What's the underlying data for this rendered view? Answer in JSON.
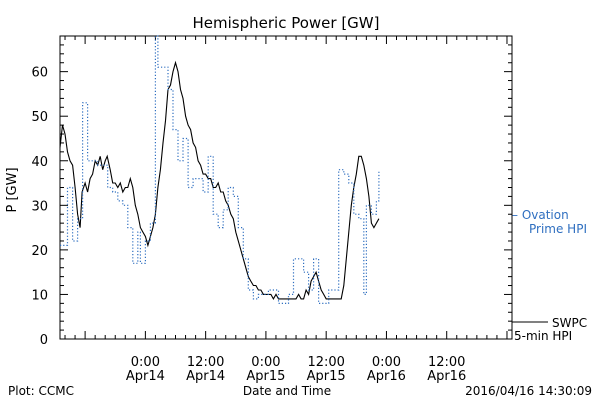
{
  "chart_data": {
    "type": "line",
    "title": "Hemispheric Power [GW]",
    "xlabel": "Date and Time",
    "ylabel": "P [GW]",
    "ylim": [
      0,
      68
    ],
    "xlim": [
      -17,
      73
    ],
    "grid": false,
    "yticks": [
      0,
      10,
      20,
      30,
      40,
      50,
      60
    ],
    "xticks": [
      {
        "x": 0,
        "time": "0:00",
        "date": "Apr14"
      },
      {
        "x": 12,
        "time": "12:00",
        "date": "Apr14"
      },
      {
        "x": 24,
        "time": "0:00",
        "date": "Apr15"
      },
      {
        "x": 36,
        "time": "12:00",
        "date": "Apr15"
      },
      {
        "x": 48,
        "time": "0:00",
        "date": "Apr16"
      },
      {
        "x": 60,
        "time": "12:00",
        "date": "Apr16"
      }
    ],
    "x_units_note": "hours relative to 2016-04-14 00:00",
    "series": [
      {
        "name": "SWPC 5-min HPI",
        "label_line1": "SWPC",
        "label_line2": "5-min HPI",
        "color": "#000000",
        "style": "solid",
        "points": [
          [
            -17,
            43
          ],
          [
            -16.5,
            48
          ],
          [
            -16,
            46
          ],
          [
            -15.5,
            42
          ],
          [
            -15,
            40
          ],
          [
            -14.5,
            39
          ],
          [
            -14,
            34
          ],
          [
            -13.5,
            28
          ],
          [
            -13,
            25
          ],
          [
            -12.6,
            33
          ],
          [
            -12,
            35
          ],
          [
            -11.5,
            33
          ],
          [
            -11,
            36
          ],
          [
            -10.5,
            37
          ],
          [
            -10,
            40
          ],
          [
            -9.5,
            39
          ],
          [
            -9,
            41
          ],
          [
            -8.5,
            38
          ],
          [
            -8,
            40
          ],
          [
            -7.6,
            41
          ],
          [
            -7,
            38
          ],
          [
            -6.5,
            35
          ],
          [
            -6,
            35
          ],
          [
            -5.5,
            34
          ],
          [
            -5,
            35
          ],
          [
            -4.5,
            33
          ],
          [
            -4,
            34
          ],
          [
            -3.5,
            34
          ],
          [
            -3,
            36
          ],
          [
            -2.5,
            34
          ],
          [
            -2,
            30
          ],
          [
            -1.5,
            28
          ],
          [
            -1,
            25
          ],
          [
            -0.5,
            24
          ],
          [
            0,
            23
          ],
          [
            0.5,
            21
          ],
          [
            1,
            23
          ],
          [
            1.5,
            25
          ],
          [
            2,
            28
          ],
          [
            2.5,
            34
          ],
          [
            3,
            38
          ],
          [
            3.5,
            44
          ],
          [
            4,
            49
          ],
          [
            4.5,
            56
          ],
          [
            5,
            57
          ],
          [
            5.5,
            60
          ],
          [
            6,
            62
          ],
          [
            6.5,
            60
          ],
          [
            7,
            56
          ],
          [
            7.5,
            54
          ],
          [
            8,
            50
          ],
          [
            8.5,
            48
          ],
          [
            9,
            47
          ],
          [
            9.5,
            44
          ],
          [
            10,
            43
          ],
          [
            10.5,
            40
          ],
          [
            11,
            39
          ],
          [
            11.5,
            37
          ],
          [
            12,
            37
          ],
          [
            12.5,
            36
          ],
          [
            13,
            36
          ],
          [
            13.5,
            34
          ],
          [
            14,
            34
          ],
          [
            14.5,
            35
          ],
          [
            15,
            33
          ],
          [
            15.5,
            33
          ],
          [
            16,
            31
          ],
          [
            16.5,
            30
          ],
          [
            17,
            28
          ],
          [
            17.5,
            27
          ],
          [
            18,
            24
          ],
          [
            18.5,
            22
          ],
          [
            19,
            20
          ],
          [
            19.5,
            18
          ],
          [
            20,
            16
          ],
          [
            20.5,
            14
          ],
          [
            21,
            13
          ],
          [
            21.5,
            12
          ],
          [
            22,
            12
          ],
          [
            22.5,
            11
          ],
          [
            23,
            11
          ],
          [
            23.5,
            10
          ],
          [
            24,
            10
          ],
          [
            24.5,
            10
          ],
          [
            25,
            10
          ],
          [
            25.5,
            9
          ],
          [
            26,
            10
          ],
          [
            26.5,
            9
          ],
          [
            27,
            9
          ],
          [
            27.5,
            9
          ],
          [
            28,
            9
          ],
          [
            28.5,
            9
          ],
          [
            29,
            9
          ],
          [
            29.5,
            9
          ],
          [
            30,
            9
          ],
          [
            30.5,
            10
          ],
          [
            31,
            9
          ],
          [
            31.5,
            9
          ],
          [
            32,
            11
          ],
          [
            32.5,
            10
          ],
          [
            33,
            13
          ],
          [
            33.5,
            14
          ],
          [
            34,
            15
          ],
          [
            34.5,
            13
          ],
          [
            35,
            11
          ],
          [
            35.5,
            10
          ],
          [
            36,
            9
          ],
          [
            36.5,
            9
          ],
          [
            37,
            9
          ],
          [
            37.5,
            9
          ],
          [
            38,
            9
          ],
          [
            38.5,
            9
          ],
          [
            39,
            9
          ],
          [
            39.5,
            12
          ],
          [
            40,
            18
          ],
          [
            40.5,
            24
          ],
          [
            41,
            30
          ],
          [
            41.5,
            34
          ],
          [
            42,
            37
          ],
          [
            42.5,
            41
          ],
          [
            43,
            41
          ],
          [
            43.5,
            39
          ],
          [
            44,
            36
          ],
          [
            44.5,
            32
          ],
          [
            45,
            26
          ],
          [
            45.5,
            25
          ],
          [
            46,
            26
          ],
          [
            46.5,
            27
          ]
        ]
      },
      {
        "name": "Ovation Prime HPI",
        "label_line1": "Ovation",
        "label_line2": "Prime HPI",
        "color": "#2f6fc0",
        "style": "dotted",
        "points": [
          [
            -17,
            21
          ],
          [
            -15.5,
            21
          ],
          [
            -15.5,
            34
          ],
          [
            -14.5,
            34
          ],
          [
            -14.5,
            22
          ],
          [
            -13.5,
            22
          ],
          [
            -13.5,
            27
          ],
          [
            -12.5,
            27
          ],
          [
            -12.5,
            53
          ],
          [
            -11.5,
            53
          ],
          [
            -11.5,
            40
          ],
          [
            -9.5,
            40
          ],
          [
            -9.5,
            39
          ],
          [
            -7.5,
            39
          ],
          [
            -7.5,
            34
          ],
          [
            -6.5,
            34
          ],
          [
            -6.5,
            33
          ],
          [
            -5.5,
            33
          ],
          [
            -5.5,
            31
          ],
          [
            -4.5,
            31
          ],
          [
            -4.5,
            30
          ],
          [
            -3.5,
            30
          ],
          [
            -3.5,
            25
          ],
          [
            -2.5,
            25
          ],
          [
            -2.5,
            17
          ],
          [
            -1.5,
            17
          ],
          [
            -1.5,
            24
          ],
          [
            -1,
            24
          ],
          [
            -1,
            17
          ],
          [
            0,
            17
          ],
          [
            0,
            22
          ],
          [
            1,
            22
          ],
          [
            1,
            26
          ],
          [
            2,
            26
          ],
          [
            2,
            68
          ],
          [
            2.5,
            68
          ],
          [
            2.5,
            61
          ],
          [
            4.5,
            61
          ],
          [
            4.5,
            56
          ],
          [
            5.5,
            56
          ],
          [
            5.5,
            47
          ],
          [
            6.5,
            47
          ],
          [
            6.5,
            40
          ],
          [
            7.5,
            40
          ],
          [
            7.5,
            45
          ],
          [
            8.5,
            45
          ],
          [
            8.5,
            34
          ],
          [
            9.5,
            34
          ],
          [
            9.5,
            36
          ],
          [
            11.5,
            36
          ],
          [
            11.5,
            33
          ],
          [
            12.5,
            33
          ],
          [
            12.5,
            41
          ],
          [
            13.5,
            41
          ],
          [
            13.5,
            28
          ],
          [
            14.5,
            28
          ],
          [
            14.5,
            25
          ],
          [
            15.5,
            25
          ],
          [
            15.5,
            29
          ],
          [
            16.5,
            29
          ],
          [
            16.5,
            34
          ],
          [
            17.5,
            34
          ],
          [
            17.5,
            32
          ],
          [
            18.5,
            32
          ],
          [
            18.5,
            25
          ],
          [
            19.5,
            25
          ],
          [
            19.5,
            18
          ],
          [
            20.5,
            18
          ],
          [
            20.5,
            11
          ],
          [
            21.5,
            11
          ],
          [
            21.5,
            9
          ],
          [
            22.5,
            9
          ],
          [
            22.5,
            10
          ],
          [
            24.5,
            10
          ],
          [
            24.5,
            11
          ],
          [
            26.5,
            11
          ],
          [
            26.5,
            8
          ],
          [
            28.5,
            8
          ],
          [
            28.5,
            10
          ],
          [
            29.5,
            10
          ],
          [
            29.5,
            18
          ],
          [
            31.5,
            18
          ],
          [
            31.5,
            15
          ],
          [
            32.5,
            15
          ],
          [
            32.5,
            11
          ],
          [
            33.5,
            11
          ],
          [
            33.5,
            18
          ],
          [
            34.5,
            18
          ],
          [
            34.5,
            8
          ],
          [
            36.5,
            8
          ],
          [
            36.5,
            11
          ],
          [
            38.5,
            11
          ],
          [
            38.5,
            38
          ],
          [
            39.5,
            38
          ],
          [
            39.5,
            37
          ],
          [
            40.5,
            37
          ],
          [
            40.5,
            35
          ],
          [
            41.5,
            35
          ],
          [
            41.5,
            28
          ],
          [
            42.5,
            28
          ],
          [
            42.5,
            27
          ],
          [
            43.5,
            27
          ],
          [
            43.5,
            10
          ],
          [
            44,
            10
          ],
          [
            44,
            30
          ],
          [
            45,
            30
          ],
          [
            45,
            28
          ],
          [
            46,
            28
          ],
          [
            46,
            31
          ],
          [
            46.5,
            31
          ],
          [
            46.5,
            38
          ]
        ]
      }
    ]
  },
  "footer": {
    "left": "Plot: CCMC",
    "center": "Date and Time",
    "right": "2016/04/16 14:30:09"
  }
}
